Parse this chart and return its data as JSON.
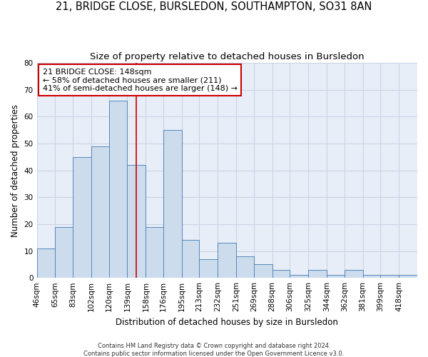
{
  "title": "21, BRIDGE CLOSE, BURSLEDON, SOUTHAMPTON, SO31 8AN",
  "subtitle": "Size of property relative to detached houses in Bursledon",
  "xlabel": "Distribution of detached houses by size in Bursledon",
  "ylabel": "Number of detached properties",
  "bin_labels": [
    "46sqm",
    "65sqm",
    "83sqm",
    "102sqm",
    "120sqm",
    "139sqm",
    "158sqm",
    "176sqm",
    "195sqm",
    "213sqm",
    "232sqm",
    "251sqm",
    "269sqm",
    "288sqm",
    "306sqm",
    "325sqm",
    "344sqm",
    "362sqm",
    "381sqm",
    "399sqm",
    "418sqm"
  ],
  "bar_heights": [
    11,
    19,
    45,
    49,
    66,
    42,
    19,
    55,
    14,
    7,
    13,
    8,
    5,
    3,
    1,
    3,
    1,
    3,
    1,
    1,
    1
  ],
  "bin_edges": [
    46,
    65,
    83,
    102,
    120,
    139,
    158,
    176,
    195,
    213,
    232,
    251,
    269,
    288,
    306,
    325,
    344,
    362,
    381,
    399,
    418,
    437
  ],
  "bar_color": "#ccdcec",
  "bar_edge_color": "#5588bb",
  "vline_x": 148,
  "vline_color": "#cc0000",
  "annotation_line1": "21 BRIDGE CLOSE: 148sqm",
  "annotation_line2": "← 58% of detached houses are smaller (211)",
  "annotation_line3": "41% of semi-detached houses are larger (148) →",
  "annotation_box_edgecolor": "#cc0000",
  "ylim": [
    0,
    80
  ],
  "yticks": [
    0,
    10,
    20,
    30,
    40,
    50,
    60,
    70,
    80
  ],
  "grid_color": "#c8d4e4",
  "background_color": "#e8eef8",
  "footer_text": "Contains HM Land Registry data © Crown copyright and database right 2024.\nContains public sector information licensed under the Open Government Licence v3.0.",
  "title_fontsize": 10.5,
  "subtitle_fontsize": 9.5,
  "axis_label_fontsize": 8.5,
  "tick_fontsize": 7.5,
  "annotation_fontsize": 8,
  "footer_fontsize": 6
}
